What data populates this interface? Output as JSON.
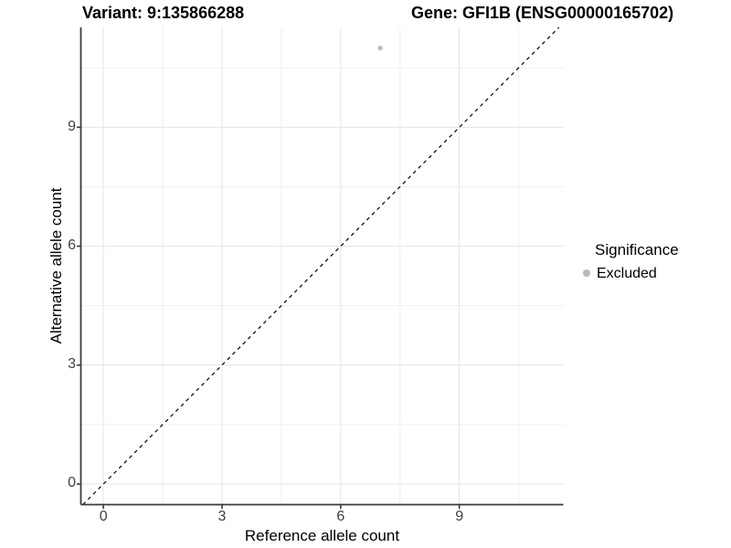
{
  "titles": {
    "variant": "Variant: 9:135866288",
    "gene": "Gene: GFI1B (ENSG00000165702)"
  },
  "legend": {
    "title": "Significance",
    "items": [
      {
        "label": "Excluded",
        "color": "#b9b9b9"
      }
    ]
  },
  "chart_data": {
    "type": "scatter",
    "xlabel": "Reference allele count",
    "ylabel": "Alternative allele count",
    "xticks": [
      0,
      3,
      6,
      9
    ],
    "yticks": [
      0,
      3,
      6,
      9
    ],
    "minor_ticks": [
      1.5,
      4.5,
      7.5,
      10.5
    ],
    "xlim": [
      -0.57,
      11.63
    ],
    "ylim": [
      -0.52,
      11.52
    ],
    "grid": true,
    "legend_position": "right",
    "series": [
      {
        "name": "Excluded",
        "color": "#bdbdbd",
        "points": [
          {
            "x": 7,
            "y": 11
          }
        ]
      }
    ],
    "identity_line": {
      "style": "dashed",
      "color": "#000000",
      "slope": 1,
      "intercept": 0
    }
  },
  "style_colors": {
    "grid_major": "#e4e4e4",
    "grid_minor": "#f0f0f0",
    "axis_line": "#3a3a3a",
    "tick_mark": "#3a3a3a",
    "tick_text": "#404040"
  }
}
